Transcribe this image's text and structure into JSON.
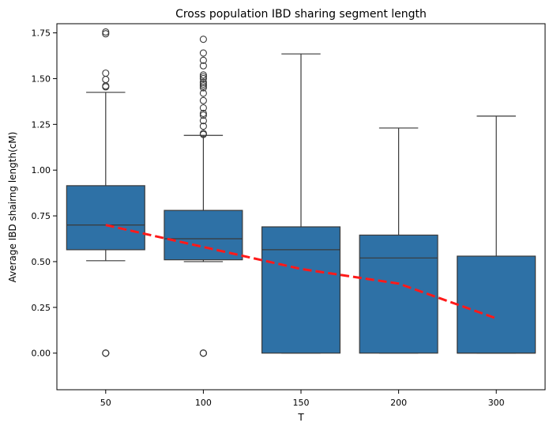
{
  "chart_data": {
    "type": "box",
    "title": "Cross population IBD sharing segment length",
    "xlabel": "T",
    "ylabel": "Average IBD shairng length(cM)",
    "categories": [
      "50",
      "100",
      "150",
      "200",
      "300"
    ],
    "ylim": [
      -0.2,
      1.8
    ],
    "yticks": [
      0.0,
      0.25,
      0.5,
      0.75,
      1.0,
      1.25,
      1.5,
      1.75
    ],
    "ytick_labels": [
      "0.00",
      "0.25",
      "0.50",
      "0.75",
      "1.00",
      "1.25",
      "1.50",
      "1.75"
    ],
    "grid": false,
    "box_color": "#2e71a6",
    "edge_color": "#3a3a3a",
    "trend_color": "#ff1a1a",
    "boxes": [
      {
        "category": "50",
        "whisker_low": 0.505,
        "q1": 0.565,
        "median": 0.7,
        "q3": 0.915,
        "whisker_high": 1.425,
        "outliers": [
          0.0,
          0.0,
          0.0,
          1.455,
          1.46,
          1.495,
          1.53,
          1.745,
          1.755
        ]
      },
      {
        "category": "100",
        "whisker_low": 0.5,
        "q1": 0.51,
        "median": 0.625,
        "q3": 0.78,
        "whisker_high": 1.19,
        "outliers": [
          0.0,
          0.0,
          0.0,
          1.195,
          1.2,
          1.24,
          1.27,
          1.3,
          1.31,
          1.34,
          1.38,
          1.42,
          1.45,
          1.46,
          1.47,
          1.48,
          1.5,
          1.51,
          1.52,
          1.57,
          1.6,
          1.64,
          1.715
        ]
      },
      {
        "category": "150",
        "whisker_low": 0.0,
        "q1": 0.0,
        "median": 0.565,
        "q3": 0.69,
        "whisker_high": 1.635,
        "outliers": []
      },
      {
        "category": "200",
        "whisker_low": 0.0,
        "q1": 0.0,
        "median": 0.52,
        "q3": 0.645,
        "whisker_high": 1.23,
        "outliers": []
      },
      {
        "category": "300",
        "whisker_low": 0.0,
        "q1": 0.0,
        "median": 0.0,
        "q3": 0.53,
        "whisker_high": 1.295,
        "outliers": []
      }
    ],
    "trend_line": {
      "style": "dashed",
      "x": [
        "50",
        "100",
        "150",
        "200",
        "300"
      ],
      "y": [
        0.7,
        0.58,
        0.46,
        0.38,
        0.19
      ]
    }
  }
}
